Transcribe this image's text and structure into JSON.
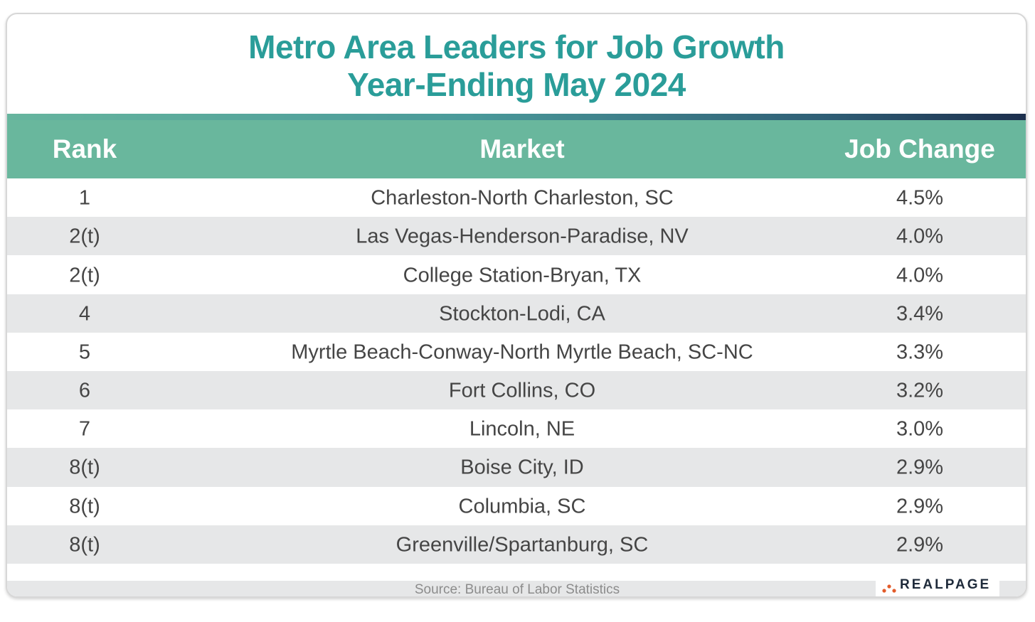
{
  "title": {
    "line1": "Metro Area Leaders for Job Growth",
    "line2": "Year-Ending May 2024"
  },
  "source": "Source: Bureau of Labor Statistics",
  "logo": {
    "text": "REALPAGE",
    "dot_colors": [
      "#e35b2a",
      "#e35b2a",
      "#e35b2a"
    ]
  },
  "colors": {
    "title": "#2a9d99",
    "header_bg": "#69b79d",
    "shaded_row": "#e6e7e8",
    "text": "#454545"
  },
  "chart_data": {
    "type": "table",
    "title": "Metro Area Leaders for Job Growth Year-Ending May 2024",
    "columns": [
      "Rank",
      "Market",
      "Job Change"
    ],
    "rows": [
      {
        "rank": "1",
        "market": "Charleston-North Charleston, SC",
        "change": "4.5%"
      },
      {
        "rank": "2(t)",
        "market": "Las Vegas-Henderson-Paradise, NV",
        "change": "4.0%"
      },
      {
        "rank": "2(t)",
        "market": "College Station-Bryan, TX",
        "change": "4.0%"
      },
      {
        "rank": "4",
        "market": "Stockton-Lodi, CA",
        "change": "3.4%"
      },
      {
        "rank": "5",
        "market": "Myrtle Beach-Conway-North Myrtle Beach, SC-NC",
        "change": "3.3%"
      },
      {
        "rank": "6",
        "market": "Fort Collins, CO",
        "change": "3.2%"
      },
      {
        "rank": "7",
        "market": "Lincoln, NE",
        "change": "3.0%"
      },
      {
        "rank": "8(t)",
        "market": "Boise City, ID",
        "change": "2.9%"
      },
      {
        "rank": "8(t)",
        "market": "Columbia, SC",
        "change": "2.9%"
      },
      {
        "rank": "8(t)",
        "market": "Greenville/Spartanburg, SC",
        "change": "2.9%"
      }
    ]
  }
}
